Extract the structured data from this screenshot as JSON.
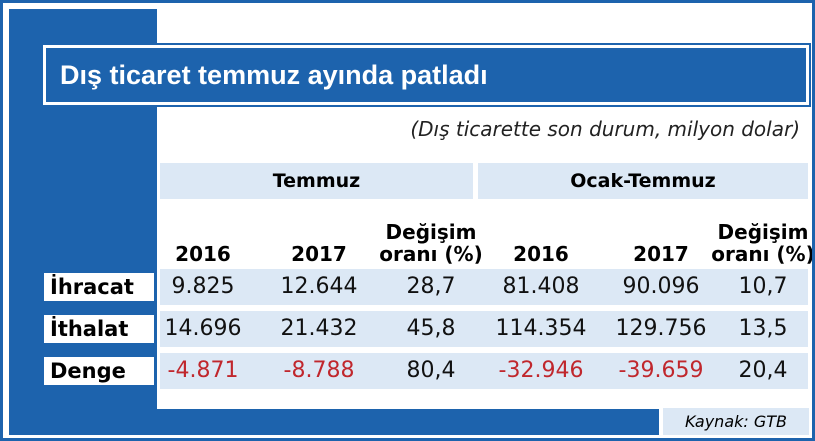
{
  "title": "Dış ticaret temmuz ayında patladı",
  "subtitle": "(Dış ticarette son durum, milyon dolar)",
  "table": {
    "groups": [
      "Temmuz",
      "Ocak-Temmuz"
    ],
    "columns": [
      [
        "2016"
      ],
      [
        "2017"
      ],
      [
        "Değişim",
        "oranı (%)"
      ],
      [
        "2016"
      ],
      [
        "2017"
      ],
      [
        "Değişim",
        "oranı (%)"
      ]
    ],
    "rows": [
      {
        "label": "İhracat",
        "cells": [
          "9.825",
          "12.644",
          "28,7",
          "81.408",
          "90.096",
          "10,7"
        ]
      },
      {
        "label": "İthalat",
        "cells": [
          "14.696",
          "21.432",
          "45,8",
          "114.354",
          "129.756",
          "13,5"
        ]
      },
      {
        "label": "Denge",
        "cells": [
          "-4.871",
          "-8.788",
          "80,4",
          "-32.946",
          "-39.659",
          "20,4"
        ]
      }
    ]
  },
  "source": "Kaynak: GTB"
}
